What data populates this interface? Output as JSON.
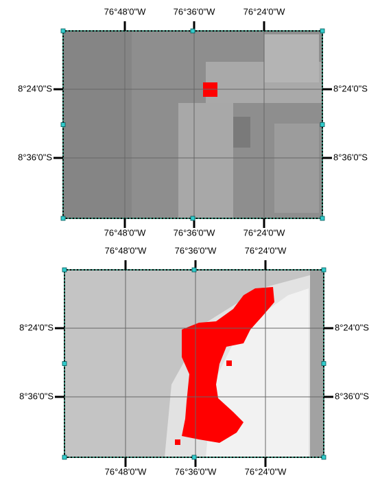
{
  "panels": [
    {
      "top_labels": [
        "76°48'0\"W",
        "76°36'0\"W",
        "76°24'0\"W"
      ],
      "bottom_labels": [
        "76°48'0\"W",
        "76°36'0\"W",
        "76°24'0\"W"
      ],
      "left_labels": [
        "8°24'0\"S",
        "8°36'0\"S"
      ],
      "right_labels": [
        "8°24'0\"S",
        "8°36'0\"S"
      ]
    },
    {
      "top_labels": [
        "76°48'0\"W",
        "76°36'0\"W",
        "76°24'0\"W"
      ],
      "bottom_labels": [
        "76°48'0\"W",
        "76°36'0\"W",
        "76°24'0\"W"
      ],
      "left_labels": [
        "8°24'0\"S",
        "8°36'0\"S"
      ],
      "right_labels": [
        "8°24'0\"S",
        "8°36'0\"S"
      ]
    }
  ]
}
